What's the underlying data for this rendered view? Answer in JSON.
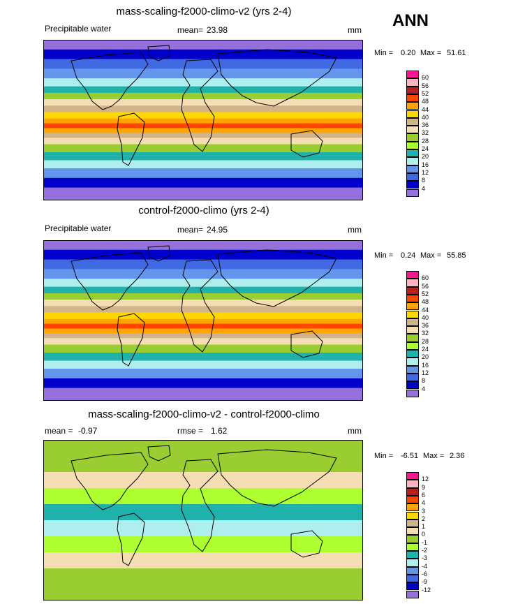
{
  "season": "ANN",
  "panels": [
    {
      "title": "mass-scaling-f2000-climo-v2 (yrs 2-4)",
      "left_label": "Precipitable water",
      "center_label_name": "mean=",
      "center_label_value": "23.98",
      "units": "mm",
      "min_label": "Min =",
      "min_value": "0.20",
      "max_label": "Max =",
      "max_value": "51.61",
      "levels": [
        "60",
        "56",
        "52",
        "48",
        "44",
        "40",
        "36",
        "32",
        "28",
        "24",
        "20",
        "16",
        "12",
        "8",
        "4"
      ],
      "colors": [
        "#ff1493",
        "#ffb6c1",
        "#b22222",
        "#ff4500",
        "#ffa500",
        "#ffd700",
        "#d2b48c",
        "#f5deb3",
        "#9acd32",
        "#adff2f",
        "#20b2aa",
        "#afeeee",
        "#6495ed",
        "#4169e1",
        "#0000cd",
        "#9370db"
      ]
    },
    {
      "title": "control-f2000-climo (yrs 2-4)",
      "left_label": "Precipitable water",
      "center_label_name": "mean=",
      "center_label_value": "24.95",
      "units": "mm",
      "min_label": "Min =",
      "min_value": "0.24",
      "max_label": "Max =",
      "max_value": "55.85",
      "levels": [
        "60",
        "56",
        "52",
        "48",
        "44",
        "40",
        "36",
        "32",
        "28",
        "24",
        "20",
        "16",
        "12",
        "8",
        "4"
      ],
      "colors": [
        "#ff1493",
        "#ffb6c1",
        "#b22222",
        "#ff4500",
        "#ffa500",
        "#ffd700",
        "#d2b48c",
        "#f5deb3",
        "#9acd32",
        "#adff2f",
        "#20b2aa",
        "#afeeee",
        "#6495ed",
        "#4169e1",
        "#0000cd",
        "#9370db"
      ]
    },
    {
      "title": "mass-scaling-f2000-climo-v2 - control-f2000-climo",
      "left_label": "mean =",
      "left_value": "-0.97",
      "center_label_name": "rmse =",
      "center_label_value": "1.62",
      "units": "mm",
      "min_label": "Min =",
      "min_value": "-6.51",
      "max_label": "Max =",
      "max_value": "2.36",
      "levels": [
        "12",
        "9",
        "6",
        "4",
        "3",
        "2",
        "1",
        "0",
        "-1",
        "-2",
        "-3",
        "-4",
        "-6",
        "-9",
        "-12"
      ],
      "colors": [
        "#ff1493",
        "#ffb6c1",
        "#b22222",
        "#ff4500",
        "#ffa500",
        "#ffd700",
        "#d2b48c",
        "#f5deb3",
        "#9acd32",
        "#adff2f",
        "#20b2aa",
        "#afeeee",
        "#6495ed",
        "#4169e1",
        "#0000cd",
        "#9370db"
      ]
    }
  ],
  "chart_data": [
    {
      "type": "heatmap",
      "title": "mass-scaling-f2000-climo-v2 (yrs 2-4)",
      "variable": "Precipitable water",
      "units": "mm",
      "mean": 23.98,
      "min": 0.2,
      "max": 51.61,
      "contour_levels": [
        4,
        8,
        12,
        16,
        20,
        24,
        28,
        32,
        36,
        40,
        44,
        48,
        52,
        56,
        60
      ]
    },
    {
      "type": "heatmap",
      "title": "control-f2000-climo (yrs 2-4)",
      "variable": "Precipitable water",
      "units": "mm",
      "mean": 24.95,
      "min": 0.24,
      "max": 55.85,
      "contour_levels": [
        4,
        8,
        12,
        16,
        20,
        24,
        28,
        32,
        36,
        40,
        44,
        48,
        52,
        56,
        60
      ]
    },
    {
      "type": "heatmap",
      "title": "mass-scaling-f2000-climo-v2 - control-f2000-climo",
      "units": "mm",
      "mean": -0.97,
      "rmse": 1.62,
      "min": -6.51,
      "max": 2.36,
      "contour_levels": [
        -12,
        -9,
        -6,
        -4,
        -3,
        -2,
        -1,
        0,
        1,
        2,
        3,
        4,
        6,
        9,
        12
      ]
    }
  ]
}
